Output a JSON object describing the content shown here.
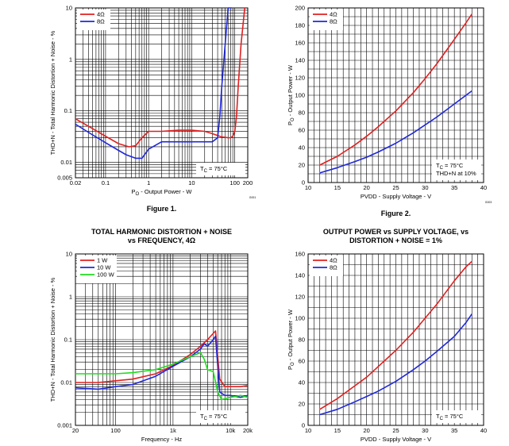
{
  "chart_data": [
    {
      "id": "c1",
      "type": "line",
      "figure_label": "Figure 1.",
      "xlabel": "P_O - Output Power - W",
      "ylabel": "THD+N - Total Harmonic Distortion + Noise - %",
      "xscale": "log",
      "yscale": "log",
      "xlim": [
        0.02,
        200
      ],
      "ylim": [
        0.005,
        10
      ],
      "xticks": [
        {
          "v": 0.02,
          "label": "0.02"
        },
        {
          "v": 0.1,
          "label": "0.1"
        },
        {
          "v": 1,
          "label": "1"
        },
        {
          "v": 10,
          "label": "10"
        },
        {
          "v": 100,
          "label": "100"
        },
        {
          "v": 200,
          "label": "200"
        }
      ],
      "yticks": [
        {
          "v": 0.005,
          "label": "0.005"
        },
        {
          "v": 0.01,
          "label": "0.01"
        },
        {
          "v": 0.1,
          "label": "0.1"
        },
        {
          "v": 1,
          "label": "1"
        },
        {
          "v": 10,
          "label": "10"
        }
      ],
      "legend": "top-left",
      "annotation": "T_C = 75°C",
      "code": "G001",
      "series": [
        {
          "name": "4Ω",
          "color": "#e02020",
          "x": [
            0.02,
            0.05,
            0.1,
            0.2,
            0.35,
            0.5,
            0.7,
            1,
            2,
            5,
            10,
            20,
            30,
            50,
            70,
            80,
            90,
            100,
            110,
            120,
            140,
            170
          ],
          "y": [
            0.07,
            0.045,
            0.032,
            0.023,
            0.02,
            0.021,
            0.03,
            0.04,
            0.04,
            0.042,
            0.042,
            0.04,
            0.036,
            0.031,
            0.03,
            0.03,
            0.032,
            0.04,
            0.08,
            0.3,
            2,
            10
          ]
        },
        {
          "name": "8Ω",
          "color": "#1f28d8",
          "x": [
            0.02,
            0.05,
            0.1,
            0.2,
            0.3,
            0.5,
            0.7,
            1,
            2,
            5,
            10,
            20,
            30,
            40,
            45,
            50,
            60,
            70,
            85
          ],
          "y": [
            0.055,
            0.034,
            0.024,
            0.017,
            0.014,
            0.012,
            0.012,
            0.018,
            0.025,
            0.025,
            0.025,
            0.025,
            0.025,
            0.03,
            0.08,
            0.3,
            2,
            10,
            10
          ]
        }
      ]
    },
    {
      "id": "c2",
      "type": "line",
      "figure_label": "Figure 2.",
      "xlabel": "PVDD - Supply Voltage - V",
      "ylabel": "P_O - Output Power - W",
      "xlim": [
        10,
        40
      ],
      "ylim": [
        0,
        200
      ],
      "xticks": [
        10,
        15,
        20,
        25,
        30,
        35,
        40
      ],
      "yticks": [
        0,
        20,
        40,
        60,
        80,
        100,
        120,
        140,
        160,
        180,
        200
      ],
      "legend": "top-left",
      "annotation": [
        "T_C = 75°C",
        "THD+N at 10%"
      ],
      "code": "G003",
      "series": [
        {
          "name": "4Ω",
          "color": "#e02020",
          "x": [
            12,
            15,
            18,
            20,
            22,
            25,
            28,
            30,
            32,
            35,
            37,
            38
          ],
          "y": [
            20,
            30,
            43,
            53,
            64,
            82,
            103,
            119,
            136,
            164,
            183,
            193
          ]
        },
        {
          "name": "8Ω",
          "color": "#1f28d8",
          "x": [
            12,
            15,
            18,
            20,
            22,
            25,
            28,
            30,
            32,
            35,
            37,
            38
          ],
          "y": [
            11,
            17,
            24,
            29,
            35,
            45,
            57,
            66,
            75,
            90,
            100,
            105
          ]
        }
      ]
    },
    {
      "id": "c3",
      "type": "line",
      "title": [
        "TOTAL HARMONIC DISTORTION + NOISE",
        "vs FREQUENCY, 4Ω"
      ],
      "xlabel": "Frequency - Hz",
      "ylabel": "THD+N - Total Harmonic Distortion + Noise - %",
      "xscale": "log",
      "yscale": "log",
      "xlim": [
        20,
        20000
      ],
      "ylim": [
        0.001,
        10
      ],
      "xticks": [
        {
          "v": 20,
          "label": "20"
        },
        {
          "v": 100,
          "label": "100"
        },
        {
          "v": 1000,
          "label": "1k"
        },
        {
          "v": 10000,
          "label": "10k"
        },
        {
          "v": 20000,
          "label": "20k"
        }
      ],
      "yticks": [
        {
          "v": 0.001,
          "label": "0.001"
        },
        {
          "v": 0.01,
          "label": "0.01"
        },
        {
          "v": 0.1,
          "label": "0.1"
        },
        {
          "v": 1,
          "label": "1"
        },
        {
          "v": 10,
          "label": "10"
        }
      ],
      "legend": "top-left",
      "annotation": "T_C = 75°C",
      "series": [
        {
          "name": "1 W",
          "color": "#e02020",
          "x": [
            20,
            50,
            100,
            200,
            500,
            1000,
            2000,
            3000,
            4000,
            5000,
            5500,
            6500,
            8000,
            10000,
            15000,
            20000
          ],
          "y": [
            0.01,
            0.01,
            0.011,
            0.012,
            0.016,
            0.025,
            0.045,
            0.07,
            0.1,
            0.14,
            0.16,
            0.012,
            0.008,
            0.008,
            0.008,
            0.0085
          ]
        },
        {
          "name": "10 W",
          "color": "#1f28d8",
          "x": [
            20,
            50,
            100,
            200,
            500,
            1000,
            2000,
            3000,
            3500,
            4000,
            5000,
            5500,
            6500,
            8000,
            10000,
            15000,
            20000
          ],
          "y": [
            0.0075,
            0.007,
            0.008,
            0.009,
            0.014,
            0.024,
            0.04,
            0.06,
            0.08,
            0.07,
            0.1,
            0.12,
            0.006,
            0.005,
            0.005,
            0.0045,
            0.005
          ]
        },
        {
          "name": "100 W",
          "color": "#20dd20",
          "x": [
            20,
            30,
            50,
            100,
            200,
            500,
            1000,
            2000,
            2500,
            3000,
            3500,
            4000,
            5000,
            6000,
            7000,
            10000,
            15000,
            20000
          ],
          "y": [
            0.016,
            0.016,
            0.016,
            0.016,
            0.017,
            0.02,
            0.027,
            0.04,
            0.045,
            0.05,
            0.035,
            0.02,
            0.018,
            0.006,
            0.004,
            0.0045,
            0.005,
            0.0045
          ]
        }
      ]
    },
    {
      "id": "c4",
      "type": "line",
      "title": [
        "OUTPUT POWER vs SUPPLY VOLTAGE, vs",
        "DISTORTION + NOISE = 1%"
      ],
      "xlabel": "PVDD - Supply Voltage - V",
      "ylabel": "P_O - Output Power - W",
      "xlim": [
        10,
        40
      ],
      "ylim": [
        0,
        160
      ],
      "xticks": [
        10,
        15,
        20,
        25,
        30,
        35,
        40
      ],
      "yticks": [
        0,
        20,
        40,
        60,
        80,
        100,
        120,
        140,
        160
      ],
      "legend": "top-left",
      "annotation": "T_C = 75°C",
      "series": [
        {
          "name": "4Ω",
          "color": "#e02020",
          "x": [
            12,
            15,
            18,
            20,
            22,
            25,
            28,
            30,
            32,
            35,
            37,
            38
          ],
          "y": [
            15,
            25,
            37,
            45,
            55,
            70,
            87,
            100,
            113,
            135,
            148,
            153
          ]
        },
        {
          "name": "8Ω",
          "color": "#1f28d8",
          "x": [
            12,
            15,
            18,
            20,
            22,
            25,
            28,
            30,
            32,
            35,
            37,
            38
          ],
          "y": [
            10,
            15,
            22,
            27,
            32,
            41,
            52,
            60,
            69,
            83,
            96,
            104
          ]
        }
      ]
    }
  ]
}
